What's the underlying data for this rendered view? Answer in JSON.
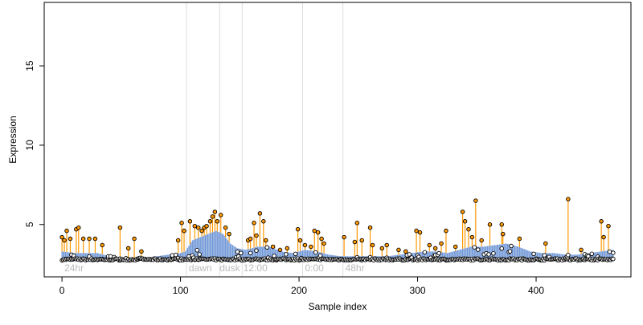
{
  "chart_data": {
    "type": "scatter",
    "title": "",
    "xlabel": "Sample index",
    "ylabel": "Expression",
    "xlim": [
      -15,
      480
    ],
    "ylim": [
      1.7,
      19.0
    ],
    "x_ticks": [
      0,
      100,
      200,
      300,
      400
    ],
    "y_ticks": [
      5,
      10,
      15
    ],
    "grid": false,
    "baseline_color": "#6f96d6",
    "above_color": "#ff9900",
    "point_color": "#000000",
    "divider_color": "#dddddd",
    "region_label_color": "#bbbbbb",
    "dividers": [
      105,
      133,
      152,
      203,
      237
    ],
    "region_labels": [
      {
        "label": "24hr",
        "x": 2
      },
      {
        "label": "dawn",
        "x": 107
      },
      {
        "label": "dusk",
        "x": 133
      },
      {
        "label": "12:00",
        "x": 153
      },
      {
        "label": "0:00",
        "x": 205
      },
      {
        "label": "48hr",
        "x": 239
      }
    ],
    "baseline": [
      [
        0,
        3.3
      ],
      [
        10,
        3.2
      ],
      [
        20,
        3.2
      ],
      [
        30,
        3.2
      ],
      [
        40,
        3.0
      ],
      [
        50,
        2.9
      ],
      [
        60,
        2.9
      ],
      [
        70,
        2.9
      ],
      [
        80,
        3.0
      ],
      [
        90,
        3.1
      ],
      [
        100,
        3.2
      ],
      [
        104,
        3.3
      ],
      [
        110,
        4.0
      ],
      [
        120,
        4.3
      ],
      [
        130,
        4.6
      ],
      [
        136,
        4.4
      ],
      [
        142,
        3.8
      ],
      [
        148,
        3.5
      ],
      [
        155,
        3.4
      ],
      [
        165,
        3.6
      ],
      [
        175,
        3.6
      ],
      [
        185,
        3.3
      ],
      [
        195,
        3.2
      ],
      [
        205,
        3.4
      ],
      [
        215,
        3.3
      ],
      [
        225,
        3.1
      ],
      [
        235,
        3.0
      ],
      [
        245,
        3.0
      ],
      [
        255,
        3.0
      ],
      [
        265,
        3.0
      ],
      [
        275,
        3.0
      ],
      [
        285,
        3.1
      ],
      [
        295,
        3.2
      ],
      [
        305,
        3.3
      ],
      [
        315,
        3.3
      ],
      [
        325,
        3.2
      ],
      [
        335,
        3.4
      ],
      [
        345,
        3.6
      ],
      [
        355,
        3.6
      ],
      [
        365,
        3.7
      ],
      [
        375,
        3.8
      ],
      [
        385,
        3.6
      ],
      [
        395,
        3.3
      ],
      [
        405,
        3.2
      ],
      [
        415,
        3.2
      ],
      [
        425,
        3.1
      ],
      [
        435,
        3.1
      ],
      [
        445,
        3.2
      ],
      [
        455,
        3.3
      ],
      [
        465,
        3.4
      ]
    ],
    "orange_points": [
      [
        0,
        4.2
      ],
      [
        2,
        4.0
      ],
      [
        4,
        4.6
      ],
      [
        7,
        4.1
      ],
      [
        12,
        4.7
      ],
      [
        14,
        4.8
      ],
      [
        18,
        4.1
      ],
      [
        23,
        4.1
      ],
      [
        28,
        4.1
      ],
      [
        34,
        3.7
      ],
      [
        49,
        4.8
      ],
      [
        56,
        3.5
      ],
      [
        61,
        4.1
      ],
      [
        67,
        3.3
      ],
      [
        98,
        4.0
      ],
      [
        101,
        5.1
      ],
      [
        103,
        4.6
      ],
      [
        108,
        5.2
      ],
      [
        112,
        4.9
      ],
      [
        115,
        4.8
      ],
      [
        118,
        4.6
      ],
      [
        120,
        4.8
      ],
      [
        122,
        4.9
      ],
      [
        125,
        5.2
      ],
      [
        127,
        5.5
      ],
      [
        129,
        5.8
      ],
      [
        131,
        5.2
      ],
      [
        134,
        5.6
      ],
      [
        138,
        4.8
      ],
      [
        141,
        4.4
      ],
      [
        157,
        4.0
      ],
      [
        159,
        4.1
      ],
      [
        162,
        5.1
      ],
      [
        164,
        4.3
      ],
      [
        167,
        5.7
      ],
      [
        170,
        5.2
      ],
      [
        172,
        4.0
      ],
      [
        178,
        3.6
      ],
      [
        184,
        3.4
      ],
      [
        190,
        3.5
      ],
      [
        199,
        4.7
      ],
      [
        201,
        4.0
      ],
      [
        205,
        3.7
      ],
      [
        210,
        3.6
      ],
      [
        213,
        4.6
      ],
      [
        216,
        4.5
      ],
      [
        219,
        4.1
      ],
      [
        221,
        3.8
      ],
      [
        238,
        4.2
      ],
      [
        247,
        3.9
      ],
      [
        249,
        5.1
      ],
      [
        253,
        4.0
      ],
      [
        260,
        4.8
      ],
      [
        262,
        3.7
      ],
      [
        270,
        3.5
      ],
      [
        274,
        3.7
      ],
      [
        284,
        3.4
      ],
      [
        290,
        3.3
      ],
      [
        299,
        4.6
      ],
      [
        302,
        4.5
      ],
      [
        310,
        3.7
      ],
      [
        315,
        3.5
      ],
      [
        320,
        3.8
      ],
      [
        324,
        4.6
      ],
      [
        332,
        3.6
      ],
      [
        338,
        5.8
      ],
      [
        340,
        5.2
      ],
      [
        343,
        4.7
      ],
      [
        346,
        4.2
      ],
      [
        349,
        6.5
      ],
      [
        354,
        4.0
      ],
      [
        361,
        5.0
      ],
      [
        371,
        5.0
      ],
      [
        372,
        4.4
      ],
      [
        386,
        4.1
      ],
      [
        408,
        3.8
      ],
      [
        427,
        6.6
      ],
      [
        438,
        3.4
      ],
      [
        455,
        5.2
      ],
      [
        457,
        4.2
      ],
      [
        461,
        4.9
      ]
    ]
  }
}
